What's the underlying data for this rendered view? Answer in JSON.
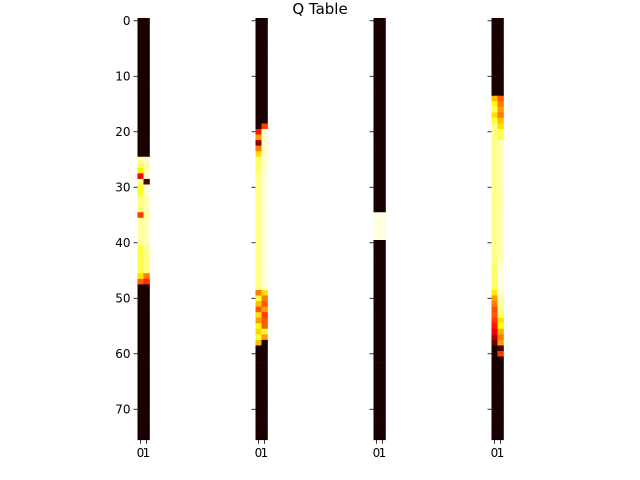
{
  "chart_data": {
    "type": "heatmap",
    "title": "Q Table",
    "colormap": "hot",
    "rows": 76,
    "y_ticks": [
      "0",
      "10",
      "20",
      "30",
      "40",
      "50",
      "60",
      "70"
    ],
    "x_ticks": [
      "0",
      "1"
    ],
    "panels": [
      {
        "rows": [
          {
            "from": 0,
            "to": 24,
            "values": [
              0.02,
              0.02
            ]
          },
          {
            "from": 25,
            "to": 25,
            "values": [
              0.92,
              0.95
            ]
          },
          {
            "from": 26,
            "to": 26,
            "values": [
              0.85,
              0.9
            ]
          },
          {
            "from": 27,
            "to": 27,
            "values": [
              0.72,
              0.93
            ]
          },
          {
            "from": 28,
            "to": 28,
            "values": [
              0.35,
              0.95
            ]
          },
          {
            "from": 29,
            "to": 29,
            "values": [
              0.9,
              0.1
            ]
          },
          {
            "from": 30,
            "to": 31,
            "values": [
              0.78,
              0.96
            ]
          },
          {
            "from": 32,
            "to": 34,
            "values": [
              0.88,
              0.92
            ]
          },
          {
            "from": 35,
            "to": 35,
            "values": [
              0.45,
              0.9
            ]
          },
          {
            "from": 36,
            "to": 40,
            "values": [
              0.9,
              0.93
            ]
          },
          {
            "from": 41,
            "to": 45,
            "values": [
              0.82,
              0.88
            ]
          },
          {
            "from": 46,
            "to": 46,
            "values": [
              0.7,
              0.55
            ]
          },
          {
            "from": 47,
            "to": 47,
            "values": [
              0.5,
              0.42
            ]
          },
          {
            "from": 48,
            "to": 75,
            "values": [
              0.02,
              0.02
            ]
          }
        ]
      },
      {
        "rows": [
          {
            "from": 0,
            "to": 18,
            "values": [
              0.02,
              0.02
            ]
          },
          {
            "from": 19,
            "to": 19,
            "values": [
              0.03,
              0.45
            ]
          },
          {
            "from": 20,
            "to": 20,
            "values": [
              0.4,
              0.95
            ]
          },
          {
            "from": 21,
            "to": 21,
            "values": [
              0.6,
              0.95
            ]
          },
          {
            "from": 22,
            "to": 22,
            "values": [
              0.2,
              0.96
            ]
          },
          {
            "from": 23,
            "to": 23,
            "values": [
              0.55,
              0.94
            ]
          },
          {
            "from": 24,
            "to": 24,
            "values": [
              0.7,
              0.95
            ]
          },
          {
            "from": 25,
            "to": 27,
            "values": [
              0.85,
              0.95
            ]
          },
          {
            "from": 28,
            "to": 48,
            "values": [
              0.88,
              0.96
            ]
          },
          {
            "from": 49,
            "to": 49,
            "values": [
              0.55,
              0.7
            ]
          },
          {
            "from": 50,
            "to": 50,
            "values": [
              0.8,
              0.55
            ]
          },
          {
            "from": 51,
            "to": 51,
            "values": [
              0.65,
              0.5
            ]
          },
          {
            "from": 52,
            "to": 52,
            "values": [
              0.5,
              0.6
            ]
          },
          {
            "from": 53,
            "to": 53,
            "values": [
              0.7,
              0.45
            ]
          },
          {
            "from": 54,
            "to": 54,
            "values": [
              0.6,
              0.5
            ]
          },
          {
            "from": 55,
            "to": 55,
            "values": [
              0.75,
              0.5
            ]
          },
          {
            "from": 56,
            "to": 56,
            "values": [
              0.68,
              0.8
            ]
          },
          {
            "from": 57,
            "to": 57,
            "values": [
              0.8,
              0.6
            ]
          },
          {
            "from": 58,
            "to": 58,
            "values": [
              0.65,
              0.02
            ]
          },
          {
            "from": 59,
            "to": 75,
            "values": [
              0.02,
              0.02
            ]
          }
        ]
      },
      {
        "rows": [
          {
            "from": 0,
            "to": 34,
            "values": [
              0.02,
              0.02
            ]
          },
          {
            "from": 35,
            "to": 39,
            "values": [
              0.97,
              0.97
            ]
          },
          {
            "from": 40,
            "to": 75,
            "values": [
              0.02,
              0.02
            ]
          }
        ]
      },
      {
        "rows": [
          {
            "from": 0,
            "to": 13,
            "values": [
              0.02,
              0.02
            ]
          },
          {
            "from": 14,
            "to": 14,
            "values": [
              0.65,
              0.5
            ]
          },
          {
            "from": 15,
            "to": 15,
            "values": [
              0.75,
              0.55
            ]
          },
          {
            "from": 16,
            "to": 16,
            "values": [
              0.85,
              0.6
            ]
          },
          {
            "from": 17,
            "to": 17,
            "values": [
              0.7,
              0.55
            ]
          },
          {
            "from": 18,
            "to": 18,
            "values": [
              0.8,
              0.65
            ]
          },
          {
            "from": 19,
            "to": 19,
            "values": [
              0.9,
              0.7
            ]
          },
          {
            "from": 20,
            "to": 21,
            "values": [
              0.88,
              0.82
            ]
          },
          {
            "from": 22,
            "to": 43,
            "values": [
              0.88,
              0.92
            ]
          },
          {
            "from": 44,
            "to": 48,
            "values": [
              0.85,
              0.97
            ]
          },
          {
            "from": 49,
            "to": 49,
            "values": [
              0.72,
              0.95
            ]
          },
          {
            "from": 50,
            "to": 50,
            "values": [
              0.6,
              0.92
            ]
          },
          {
            "from": 51,
            "to": 51,
            "values": [
              0.55,
              0.9
            ]
          },
          {
            "from": 52,
            "to": 52,
            "values": [
              0.48,
              0.88
            ]
          },
          {
            "from": 53,
            "to": 53,
            "values": [
              0.5,
              0.86
            ]
          },
          {
            "from": 54,
            "to": 54,
            "values": [
              0.45,
              0.7
            ]
          },
          {
            "from": 55,
            "to": 55,
            "values": [
              0.4,
              0.75
            ]
          },
          {
            "from": 56,
            "to": 56,
            "values": [
              0.35,
              0.62
            ]
          },
          {
            "from": 57,
            "to": 57,
            "values": [
              0.25,
              0.55
            ]
          },
          {
            "from": 58,
            "to": 58,
            "values": [
              0.15,
              0.6
            ]
          },
          {
            "from": 59,
            "to": 59,
            "values": [
              0.02,
              0.1
            ]
          },
          {
            "from": 60,
            "to": 60,
            "values": [
              0.02,
              0.45
            ]
          },
          {
            "from": 61,
            "to": 75,
            "values": [
              0.02,
              0.02
            ]
          }
        ]
      }
    ]
  }
}
